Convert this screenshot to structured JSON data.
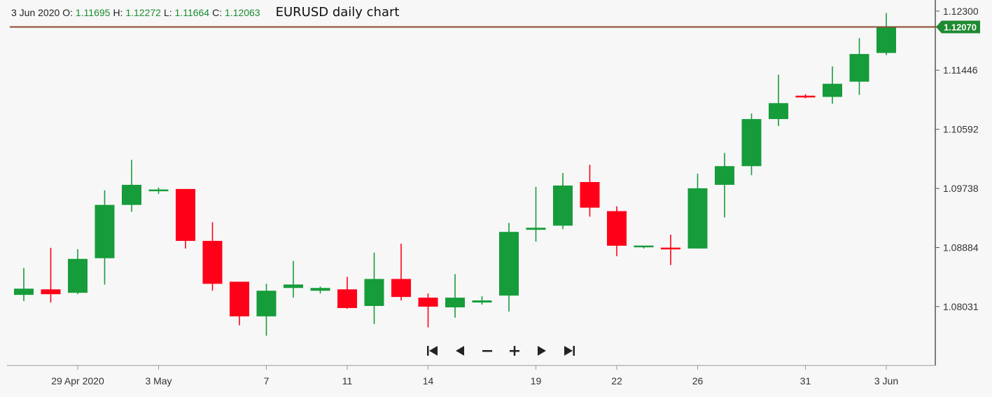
{
  "header": {
    "date": "3 Jun 2020",
    "o_label": "O:",
    "o_value": "1.11695",
    "h_label": "H:",
    "h_value": "1.12272",
    "l_label": "L:",
    "l_value": "1.11664",
    "c_label": "C:",
    "c_value": "1.12063",
    "title": "EURUSD daily chart"
  },
  "colors": {
    "up": "#169c3a",
    "down": "#ff0019",
    "price_line": "#8a4a2e",
    "current_price_tag": "#1f8a31",
    "background": "#f7f7f7"
  },
  "current_price": {
    "label": "1.12070",
    "value": 1.1207
  },
  "navigation": {
    "buttons": [
      {
        "id": "first",
        "icon": "skip-to-start-icon"
      },
      {
        "id": "prev",
        "icon": "triangle-left-icon"
      },
      {
        "id": "zoom-out",
        "icon": "minus-icon"
      },
      {
        "id": "zoom-in",
        "icon": "plus-icon"
      },
      {
        "id": "next",
        "icon": "triangle-right-icon"
      },
      {
        "id": "last",
        "icon": "skip-to-end-icon"
      }
    ]
  },
  "chart_data": {
    "type": "candlestick",
    "title": "EURUSD daily chart",
    "y_ticks": [
      "1.12300",
      "1.11446",
      "1.10592",
      "1.09738",
      "1.08884",
      "1.08031"
    ],
    "y_tick_values": [
      1.123,
      1.11446,
      1.10592,
      1.09738,
      1.08884,
      1.08031
    ],
    "ylim": [
      1.0718,
      1.1246
    ],
    "x_tick_labels": [
      {
        "label": "29 Apr 2020",
        "index": 2
      },
      {
        "label": "3 May",
        "index": 5
      },
      {
        "label": "7",
        "index": 9
      },
      {
        "label": "11",
        "index": 12
      },
      {
        "label": "14",
        "index": 15
      },
      {
        "label": "19",
        "index": 19
      },
      {
        "label": "22",
        "index": 22
      },
      {
        "label": "26",
        "index": 25
      },
      {
        "label": "31",
        "index": 29
      },
      {
        "label": "3 Jun",
        "index": 32
      }
    ],
    "candles": [
      {
        "o": 1.082,
        "h": 1.0859,
        "l": 1.0811,
        "c": 1.0829
      },
      {
        "o": 1.0828,
        "h": 1.0888,
        "l": 1.0809,
        "c": 1.0821
      },
      {
        "o": 1.0823,
        "h": 1.0886,
        "l": 1.0821,
        "c": 1.0872
      },
      {
        "o": 1.0873,
        "h": 1.0971,
        "l": 1.0835,
        "c": 1.095
      },
      {
        "o": 1.095,
        "h": 1.1015,
        "l": 1.094,
        "c": 1.0979
      },
      {
        "o": 1.0971,
        "h": 1.0975,
        "l": 1.0966,
        "c": 1.0971
      },
      {
        "o": 1.0973,
        "h": 1.0973,
        "l": 1.0887,
        "c": 1.0898
      },
      {
        "o": 1.0898,
        "h": 1.0925,
        "l": 1.0826,
        "c": 1.0836
      },
      {
        "o": 1.0839,
        "h": 1.0839,
        "l": 1.0776,
        "c": 1.0789
      },
      {
        "o": 1.0789,
        "h": 1.0836,
        "l": 1.0761,
        "c": 1.0826
      },
      {
        "o": 1.083,
        "h": 1.0869,
        "l": 1.0816,
        "c": 1.0835
      },
      {
        "o": 1.0826,
        "h": 1.0832,
        "l": 1.0822,
        "c": 1.083
      },
      {
        "o": 1.0828,
        "h": 1.0846,
        "l": 1.08,
        "c": 1.0801
      },
      {
        "o": 1.0804,
        "h": 1.0881,
        "l": 1.0778,
        "c": 1.0843
      },
      {
        "o": 1.0843,
        "h": 1.0894,
        "l": 1.0812,
        "c": 1.0817
      },
      {
        "o": 1.0816,
        "h": 1.0822,
        "l": 1.0773,
        "c": 1.0803
      },
      {
        "o": 1.0802,
        "h": 1.085,
        "l": 1.0787,
        "c": 1.0816
      },
      {
        "o": 1.0809,
        "h": 1.0818,
        "l": 1.0806,
        "c": 1.0812
      },
      {
        "o": 1.0819,
        "h": 1.0924,
        "l": 1.0796,
        "c": 1.0911
      },
      {
        "o": 1.0914,
        "h": 1.0976,
        "l": 1.0897,
        "c": 1.0917
      },
      {
        "o": 1.092,
        "h": 1.0996,
        "l": 1.0915,
        "c": 1.0978
      },
      {
        "o": 1.0983,
        "h": 1.1008,
        "l": 1.0933,
        "c": 1.0946
      },
      {
        "o": 1.0941,
        "h": 1.0948,
        "l": 1.0876,
        "c": 1.0891
      },
      {
        "o": 1.089,
        "h": 1.0891,
        "l": 1.0887,
        "c": 1.089
      },
      {
        "o": 1.0888,
        "h": 1.0907,
        "l": 1.0863,
        "c": 1.0886
      },
      {
        "o": 1.0887,
        "h": 1.0995,
        "l": 1.0887,
        "c": 1.0974
      },
      {
        "o": 1.0979,
        "h": 1.1025,
        "l": 1.0932,
        "c": 1.1006
      },
      {
        "o": 1.1006,
        "h": 1.1082,
        "l": 1.0993,
        "c": 1.1074
      },
      {
        "o": 1.1074,
        "h": 1.1138,
        "l": 1.1064,
        "c": 1.1097
      },
      {
        "o": 1.1107,
        "h": 1.111,
        "l": 1.1104,
        "c": 1.1106
      },
      {
        "o": 1.1106,
        "h": 1.115,
        "l": 1.1096,
        "c": 1.1125
      },
      {
        "o": 1.1128,
        "h": 1.1191,
        "l": 1.1109,
        "c": 1.1168
      },
      {
        "o": 1.11695,
        "h": 1.12272,
        "l": 1.11664,
        "c": 1.12063
      }
    ]
  }
}
